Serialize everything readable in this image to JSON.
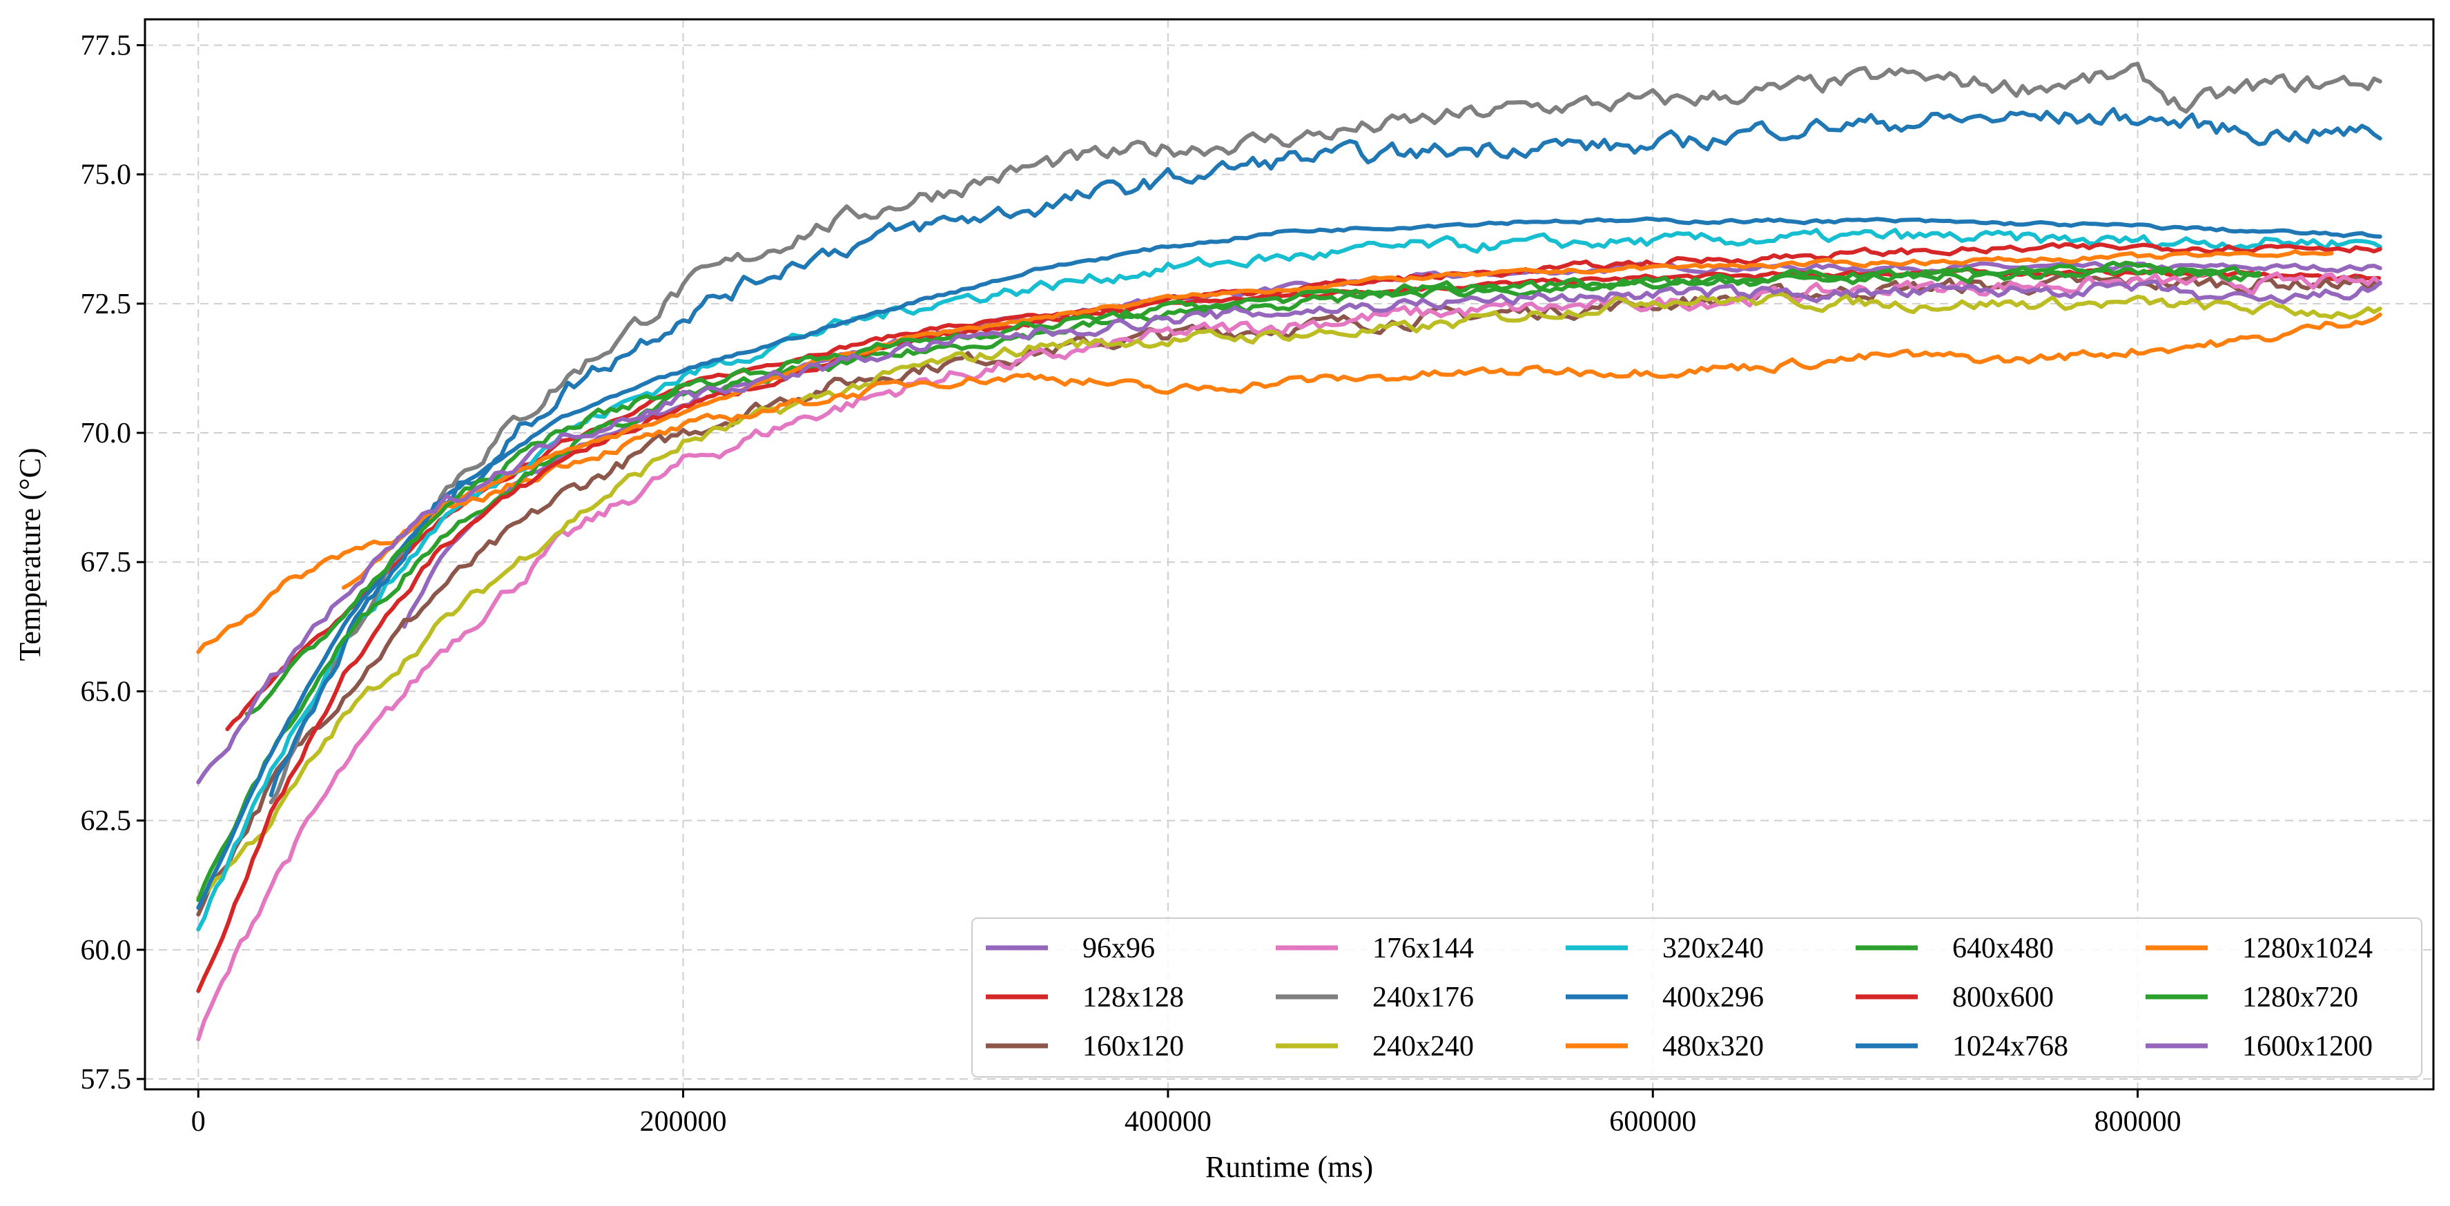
{
  "chart_data": {
    "type": "line",
    "title": "",
    "xlabel": "Runtime (ms)",
    "ylabel": "Temperature (°C)",
    "xlim": [
      -22000,
      922000
    ],
    "ylim": [
      57.3,
      78.0
    ],
    "xticks": [
      0,
      200000,
      400000,
      600000,
      800000
    ],
    "xtick_labels": [
      "0",
      "200000",
      "400000",
      "600000",
      "800000"
    ],
    "yticks": [
      57.5,
      60.0,
      62.5,
      65.0,
      67.5,
      70.0,
      72.5,
      75.0,
      77.5
    ],
    "ytick_labels": [
      "57.5",
      "60.0",
      "62.5",
      "65.0",
      "67.5",
      "70.0",
      "72.5",
      "75.0",
      "77.5"
    ],
    "grid": true,
    "legend_position": "lower-right",
    "legend_columns": 5,
    "series": [
      {
        "name": "96x96",
        "color": "#9467bd",
        "noise": 0.05,
        "x": [
          85000,
          100000,
          130000,
          170000,
          220000,
          300000,
          400000,
          500000,
          600000,
          700000,
          800000,
          900000
        ],
        "y": [
          66.3,
          67.6,
          69.0,
          70.0,
          70.9,
          71.9,
          72.6,
          73.0,
          73.2,
          73.2,
          73.2,
          73.2
        ]
      },
      {
        "name": "128x128",
        "color": "#d62728",
        "noise": 0.04,
        "x": [
          12000,
          30000,
          60000,
          100000,
          150000,
          200000,
          250000,
          300000,
          400000,
          500000,
          600000,
          700000,
          800000,
          900000
        ],
        "y": [
          64.3,
          65.2,
          66.5,
          68.3,
          69.8,
          70.9,
          71.5,
          72.0,
          72.5,
          72.8,
          73.0,
          73.1,
          73.1,
          73.0
        ]
      },
      {
        "name": "160x120",
        "color": "#8c564b",
        "noise": 0.12,
        "x": [
          0,
          30000,
          60000,
          100000,
          150000,
          200000,
          250000,
          300000,
          400000,
          500000,
          600000,
          700000,
          800000,
          900000
        ],
        "y": [
          60.8,
          63.2,
          65.0,
          67.0,
          68.8,
          70.0,
          70.8,
          71.3,
          71.9,
          72.2,
          72.5,
          72.8,
          72.9,
          72.9
        ]
      },
      {
        "name": "176x144",
        "color": "#e377c2",
        "noise": 0.12,
        "x": [
          0,
          30000,
          60000,
          100000,
          150000,
          200000,
          250000,
          300000,
          400000,
          500000,
          600000,
          700000,
          800000,
          900000
        ],
        "y": [
          58.3,
          61.3,
          63.5,
          65.8,
          67.9,
          69.4,
          70.3,
          71.0,
          71.9,
          72.3,
          72.5,
          72.8,
          72.9,
          72.9
        ]
      },
      {
        "name": "240x176",
        "color": "#7f7f7f",
        "noise": 0.15,
        "x": [
          30000,
          60000,
          100000,
          150000,
          200000,
          250000,
          300000,
          350000,
          400000,
          450000,
          500000,
          550000,
          600000,
          650000,
          700000,
          750000,
          800000,
          820000,
          850000,
          900000
        ],
        "y": [
          63.0,
          66.0,
          68.9,
          71.0,
          72.8,
          73.9,
          74.6,
          75.2,
          75.5,
          75.7,
          76.0,
          76.3,
          76.4,
          76.6,
          76.9,
          76.7,
          76.9,
          76.3,
          76.7,
          76.8
        ]
      },
      {
        "name": "240x240",
        "color": "#bcbd22",
        "noise": 0.1,
        "x": [
          0,
          30000,
          60000,
          100000,
          150000,
          200000,
          250000,
          300000,
          350000,
          400000,
          450000,
          500000,
          550000,
          600000,
          700000,
          800000,
          900000
        ],
        "y": [
          61.0,
          62.5,
          64.5,
          66.3,
          68.2,
          69.8,
          70.6,
          71.3,
          71.7,
          71.8,
          71.9,
          72.0,
          72.3,
          72.6,
          72.5,
          72.5,
          72.3
        ]
      },
      {
        "name": "320x240",
        "color": "#17becf",
        "noise": 0.1,
        "x": [
          0,
          30000,
          60000,
          100000,
          150000,
          200000,
          250000,
          300000,
          400000,
          500000,
          600000,
          700000,
          800000,
          900000
        ],
        "y": [
          60.3,
          63.5,
          66.0,
          68.3,
          70.0,
          71.1,
          71.9,
          72.5,
          73.2,
          73.6,
          73.7,
          73.8,
          73.7,
          73.7
        ]
      },
      {
        "name": "400x296",
        "color": "#1f77b4",
        "noise": 0.15,
        "x": [
          30000,
          60000,
          100000,
          150000,
          200000,
          250000,
          300000,
          350000,
          400000,
          450000,
          500000,
          550000,
          600000,
          650000,
          700000,
          750000,
          800000,
          850000,
          900000
        ],
        "y": [
          63.0,
          66.0,
          68.6,
          70.8,
          72.3,
          73.4,
          74.0,
          74.4,
          74.9,
          75.3,
          75.4,
          75.6,
          75.5,
          75.9,
          76.0,
          76.1,
          76.1,
          75.8,
          75.8
        ]
      },
      {
        "name": "480x320",
        "color": "#ff7f0e",
        "noise": 0.08,
        "x": [
          0,
          20000,
          40000,
          60000,
          80000,
          100000,
          150000,
          200000,
          250000,
          300000,
          350000,
          400000,
          450000,
          500000,
          550000,
          600000,
          650000,
          700000,
          750000,
          800000,
          850000,
          900000
        ],
        "y": [
          65.8,
          66.5,
          67.2,
          67.7,
          68.0,
          68.4,
          69.4,
          70.1,
          70.6,
          71.0,
          71.1,
          70.8,
          71.0,
          71.1,
          71.2,
          71.2,
          71.3,
          71.5,
          71.4,
          71.6,
          71.8,
          72.3
        ]
      },
      {
        "name": "640x480",
        "color": "#2ca02c",
        "noise": 0.08,
        "x": [
          0,
          30000,
          60000,
          100000,
          150000,
          200000,
          250000,
          300000,
          400000,
          500000,
          600000,
          700000,
          800000,
          850000
        ],
        "y": [
          61.0,
          63.8,
          66.0,
          68.0,
          69.7,
          70.7,
          71.2,
          71.6,
          72.3,
          72.7,
          72.9,
          73.0,
          73.1,
          73.1
        ]
      },
      {
        "name": "800x600",
        "color": "#d62728",
        "noise": 0.06,
        "x": [
          0,
          30000,
          60000,
          100000,
          150000,
          200000,
          250000,
          300000,
          400000,
          500000,
          600000,
          700000,
          800000,
          900000
        ],
        "y": [
          59.2,
          62.6,
          65.3,
          67.8,
          69.5,
          70.5,
          71.2,
          71.8,
          72.6,
          73.0,
          73.3,
          73.5,
          73.6,
          73.6
        ]
      },
      {
        "name": "1024x768",
        "color": "#1f77b4",
        "noise": 0.03,
        "x": [
          0,
          30000,
          60000,
          100000,
          150000,
          200000,
          250000,
          300000,
          350000,
          400000,
          450000,
          500000,
          550000,
          600000,
          700000,
          800000,
          900000
        ],
        "y": [
          60.8,
          63.8,
          66.3,
          68.7,
          70.3,
          71.2,
          71.9,
          72.6,
          73.2,
          73.6,
          73.9,
          74.0,
          74.1,
          74.1,
          74.1,
          74.0,
          73.8
        ]
      },
      {
        "name": "1280x1024",
        "color": "#ff7f0e",
        "noise": 0.04,
        "x": [
          60000,
          100000,
          150000,
          200000,
          250000,
          300000,
          400000,
          500000,
          600000,
          700000,
          800000,
          880000
        ],
        "y": [
          67.0,
          68.6,
          69.6,
          70.4,
          71.3,
          71.9,
          72.6,
          73.0,
          73.2,
          73.3,
          73.4,
          73.5
        ]
      },
      {
        "name": "1280x720",
        "color": "#2ca02c",
        "noise": 0.08,
        "x": [
          20000,
          40000,
          60000,
          100000,
          150000,
          200000,
          250000,
          300000,
          400000,
          500000,
          600000,
          700000,
          800000,
          850000
        ],
        "y": [
          64.5,
          65.5,
          66.5,
          68.5,
          70.1,
          70.9,
          71.4,
          71.8,
          72.4,
          72.8,
          72.9,
          73.1,
          73.2,
          73.0
        ]
      },
      {
        "name": "1600x1200",
        "color": "#9467bd",
        "noise": 0.1,
        "x": [
          0,
          20000,
          40000,
          60000,
          80000,
          100000,
          150000,
          200000,
          250000,
          300000,
          400000,
          500000,
          600000,
          700000,
          800000,
          850000,
          900000
        ],
        "y": [
          63.3,
          64.5,
          65.8,
          66.8,
          67.8,
          68.6,
          69.9,
          70.7,
          71.2,
          71.7,
          72.2,
          72.5,
          72.7,
          72.7,
          72.8,
          72.5,
          72.8
        ]
      }
    ]
  }
}
